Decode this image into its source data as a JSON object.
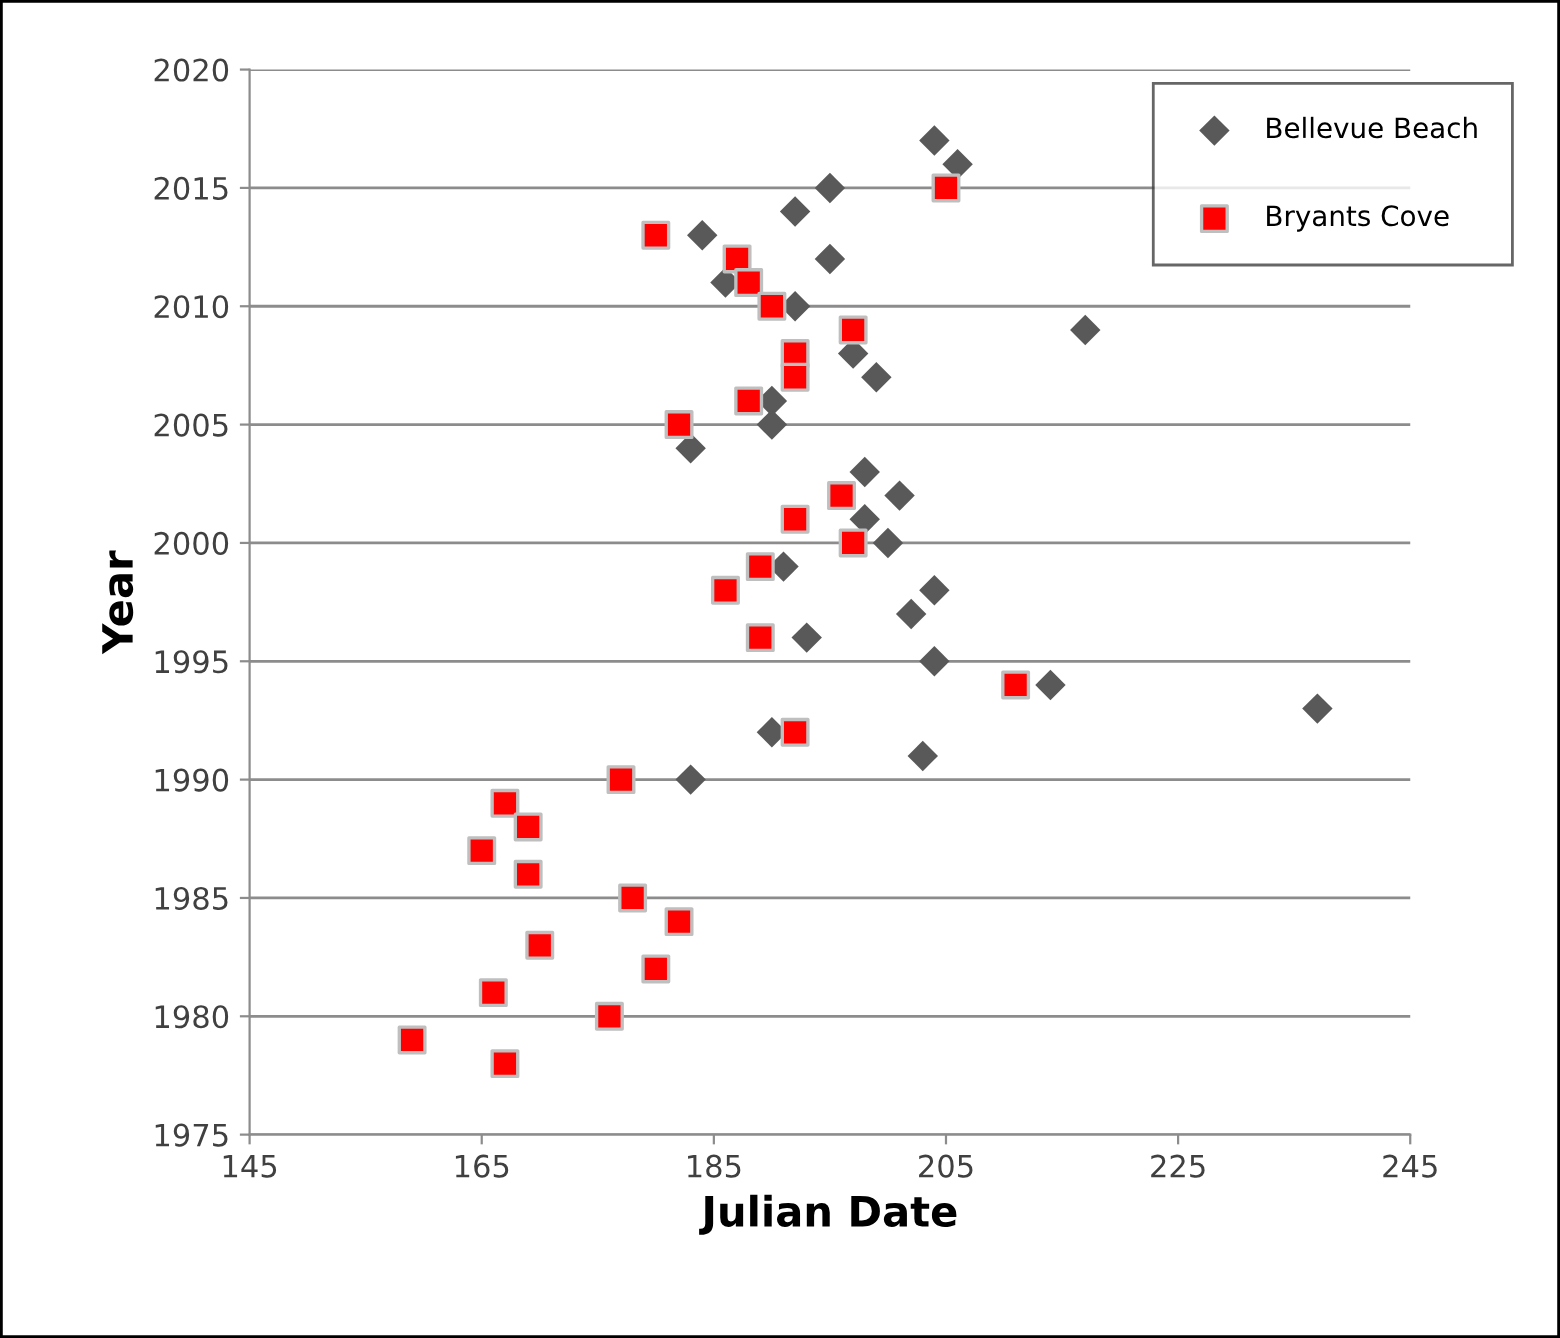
{
  "chart_data": {
    "type": "scatter",
    "xlabel": "Julian Date",
    "ylabel": "Year",
    "xlim": [
      145,
      245
    ],
    "xticks": [
      145,
      165,
      185,
      205,
      225,
      245
    ],
    "ylim": [
      1975,
      2020
    ],
    "yticks": [
      1975,
      1980,
      1985,
      1990,
      1995,
      2000,
      2005,
      2010,
      2015,
      2020
    ],
    "grid": "y",
    "legend": "top right",
    "series": [
      {
        "name": "Bellevue Beach",
        "color": "#595959",
        "marker": "diamond",
        "x": [
          204,
          206,
          195,
          192,
          184,
          195,
          186,
          192,
          217,
          197,
          199,
          190,
          190,
          183,
          198,
          201,
          198,
          200,
          191,
          204,
          202,
          193,
          204,
          214,
          237,
          190,
          203,
          183
        ],
        "values": [
          2017,
          2016,
          2015,
          2014,
          2013,
          2012,
          2011,
          2010,
          2009,
          2008,
          2007,
          2006,
          2005,
          2004,
          2003,
          2002,
          2001,
          2000,
          1999,
          1998,
          1997,
          1996,
          1995,
          1994,
          1993,
          1992,
          1991,
          1990
        ]
      },
      {
        "name": "Bryants Cove",
        "color": "#ff0000",
        "marker": "square",
        "x": [
          205,
          180,
          187,
          188,
          190,
          197,
          192,
          192,
          188,
          182,
          196,
          192,
          197,
          189,
          186,
          189,
          211,
          192,
          177,
          167,
          169,
          165,
          169,
          178,
          182,
          170,
          180,
          166,
          176,
          159,
          167
        ],
        "values": [
          2015,
          2013,
          2012,
          2011,
          2010,
          2009,
          2008,
          2007,
          2006,
          2005,
          2002,
          2001,
          2000,
          1999,
          1998,
          1996,
          1994,
          1992,
          1990,
          1989,
          1988,
          1987,
          1986,
          1985,
          1984,
          1983,
          1982,
          1981,
          1980,
          1979,
          1978
        ]
      }
    ]
  }
}
